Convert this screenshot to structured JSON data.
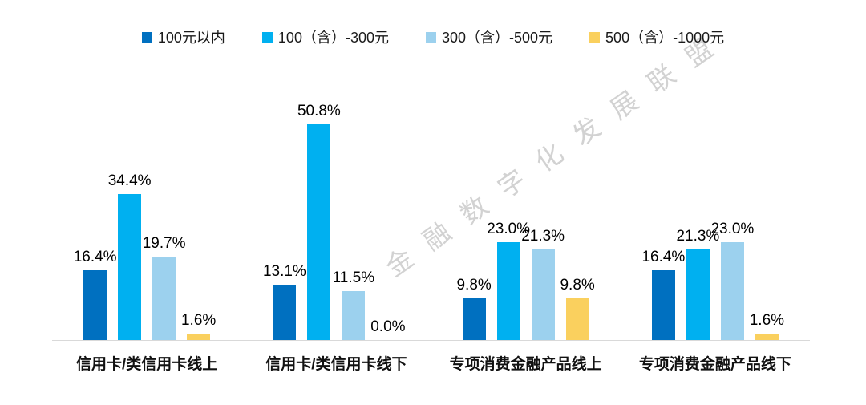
{
  "watermark": {
    "text": "金融数字化发展联盟"
  },
  "chart_data": {
    "type": "bar",
    "title": "",
    "xlabel": "",
    "ylabel": "",
    "value_suffix": "%",
    "value_decimals": 1,
    "ylim": [
      0,
      55
    ],
    "grid": false,
    "legend_position": "top",
    "background_color": "#ffffff",
    "axis_line_color": "#d9d9d9",
    "categories": [
      "信用卡/类信用卡线上",
      "信用卡/类信用卡线下",
      "专项消费金融产品线上",
      "专项消费金融产品线下"
    ],
    "series": [
      {
        "name": "100元以内",
        "color": "#0070C0",
        "values": [
          16.4,
          13.1,
          9.8,
          16.4
        ]
      },
      {
        "name": "100（含）-300元",
        "color": "#00B0F0",
        "values": [
          34.4,
          50.8,
          23.0,
          21.3
        ]
      },
      {
        "name": "300（含）-500元",
        "color": "#9CD1EE",
        "values": [
          19.7,
          11.5,
          21.3,
          23.0
        ]
      },
      {
        "name": "500（含）-1000元",
        "color": "#FAD05E",
        "values": [
          1.6,
          0.0,
          9.8,
          1.6
        ]
      }
    ]
  }
}
